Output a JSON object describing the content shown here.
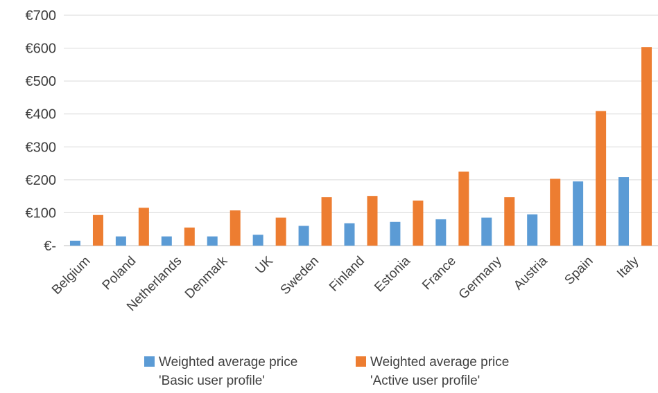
{
  "chart_data": {
    "type": "bar",
    "categories": [
      "Belgium",
      "Poland",
      "Netherlands",
      "Denmark",
      "UK",
      "Sweden",
      "Finland",
      "Estonia",
      "France",
      "Germany",
      "Austria",
      "Spain",
      "Italy"
    ],
    "series": [
      {
        "name_line1": "Weighted average price",
        "name_line2": "'Basic user profile'",
        "color": "#5b9bd5",
        "values": [
          15,
          28,
          28,
          28,
          33,
          60,
          68,
          72,
          80,
          85,
          95,
          195,
          208
        ]
      },
      {
        "name_line1": "Weighted average price",
        "name_line2": "'Active user profile'",
        "color": "#ed7d31",
        "values": [
          93,
          115,
          55,
          107,
          85,
          147,
          151,
          137,
          225,
          147,
          203,
          409,
          603
        ]
      }
    ],
    "y_ticks": [
      "€-",
      "€100",
      "€200",
      "€300",
      "€400",
      "€500",
      "€600",
      "€700"
    ],
    "ylim": [
      0,
      700
    ],
    "grid": true,
    "legend_position": "bottom"
  }
}
